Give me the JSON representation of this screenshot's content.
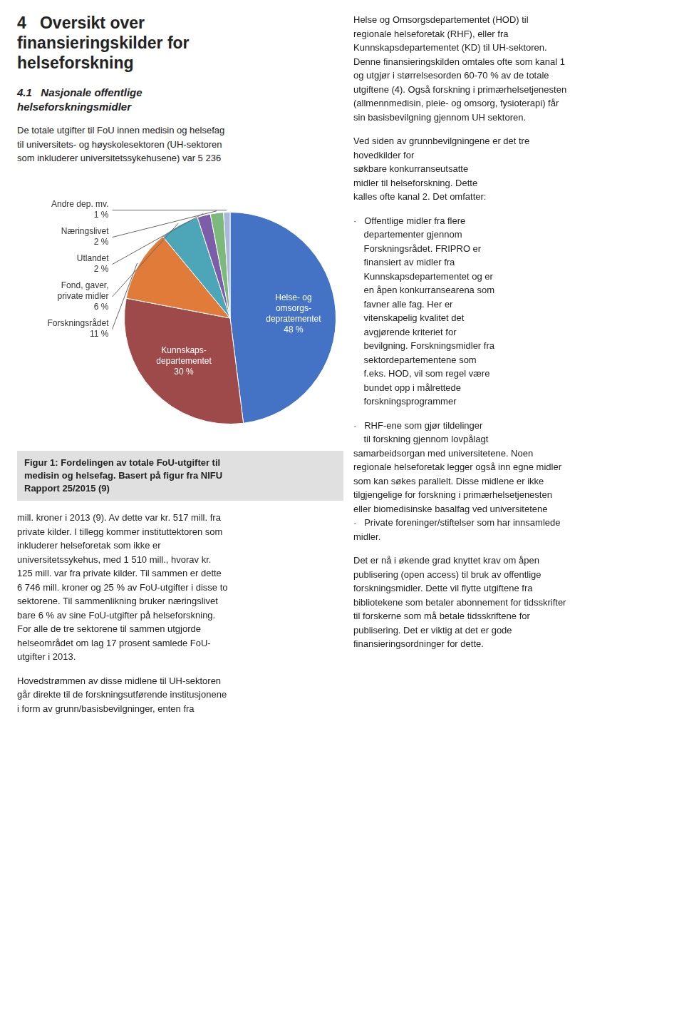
{
  "chart_data": {
    "type": "pie",
    "title": "4   Oversikt over\nfinansieringskilder for\nhelseforskning",
    "subtitle": "4.1   Nasjonale offentlige\nhelseforskningsmidler",
    "categories": [
      "Helse- og\nomsorgs-\ndepratementet",
      "Kunnskaps-\ndepartementet",
      "Forskningsrådet",
      "Fond, gaver,\nprivate midler",
      "Utlandet",
      "Næringslivet",
      "Andre dep. mv."
    ],
    "values": [
      48,
      30,
      11,
      6,
      2,
      2,
      1
    ],
    "value_labels": [
      "48 %",
      "30 %",
      "11 %",
      "6 %",
      "2 %",
      "2 %",
      "1 %"
    ],
    "colors": [
      "#4472c4",
      "#9e4a4a",
      "#e07b39",
      "#4da6b8",
      "#7b5ea7",
      "#7db87d",
      "#a8b8d8"
    ],
    "data_labels": true,
    "annotations": [
      "Figur 1: Fordelingen av totale FoU-utgifter til\nmedisin og helsefag. Basert på figur fra NIFU\nRapport 25/2015 (9)",
      "De totale utgifter til FoU innen medisin og helsefag\ntil universitets- og høyskolesektoren (UH-sektoren\nsom inkluderer universitetssykehusene) var 5 236",
      "mill. kroner i 2013 (9). Av dette var kr. 517 mill. fra\nprivate kilder. I tillegg kommer instituttektoren som\ninkluderer helseforetak som ikke er\nuniversitetssykehus, med 1 510 mill., hvorav kr.\n125 mill. var fra private kilder. Til sammen er dette\n6 746 mill. kroner og 25 % av FoU-utgifter i disse to\nsektorene. Til sammenlikning bruker næringslivet\nbare 6 % av sine FoU-utgifter på helseforskning.\nFor alle de tre sektorene til sammen utgjorde\nhelseområdet om lag 17 prosent samlede FoU-\nutgifter i 2013.",
      "Hovedstrømmen av disse midlene til UH-sektoren\ngår direkte til de forskningsutførende institusjonene\ni form av grunn/basisbevilgninger, enten fra",
      "Helse og Omsorgsdepartementet (HOD) til\nregionale helseforetak (RHF), eller fra\nKunnskapsdepartementet (KD) til UH-sektoren.\nDenne finansieringskilden omtales ofte som kanal 1\nog utgjør i størrelsesorden 60-70 % av de totale\nutgiftene (4). Også forskning i primærhelsetjenesten\n(allmennmedisin, pleie- og omsorg, fysioterapi) får\nsin basisbevilgning gjennom UH sektoren.",
      "Ved siden av grunnbevilgningene er det tre\nhovedkilder for\nsøkbare konkurranseutsatte\nmidler til helseforskning. Dette\nkalles ofte kanal 2. Det omfatter:",
      "·   Offentlige midler fra flere\n    departementer gjennom\n    Forskningsrådet. FRIPRO er\n    finansiert av midler fra\n    Kunnskapsdepartementet og er\n    en åpen konkurransearena som\n    favner alle fag. Her er\n    vitenskapelig kvalitet det\n    avgjørende kriteriet for\n    bevilgning. Forskningsmidler fra\n    sektordepartementene som\n    f.eks. HOD, vil som regel være\n    bundet opp i målrettede\n    forskningsprogrammer",
      "·   RHF-ene som gjør tildelinger\n    til forskning gjennom lovpålagt\nsamarbeidsorgan med universitetene. Noen\nregionale helseforetak legger også inn egne midler\nsom kan søkes parallelt. Disse midlene er ikke\ntilgjengelige for forskning i primærhelsetjenesten\neller biomedisinske basalfag ved universitetene\n·   Private foreninger/stiftelser som har innsamlede\nmidler.",
      "Det er nå i økende grad knyttet krav om åpen\npublisering (open access) til bruk av offentlige\nforskningsmidler. Dette vil flytte utgiftene fra\nbibliotekene som betaler abonnement for tidsskrifter\ntil forskerne som må betale tidsskriftene for\npublisering. Det er viktig at det er gode\nfinansieringsordninger for dette."
    ]
  }
}
